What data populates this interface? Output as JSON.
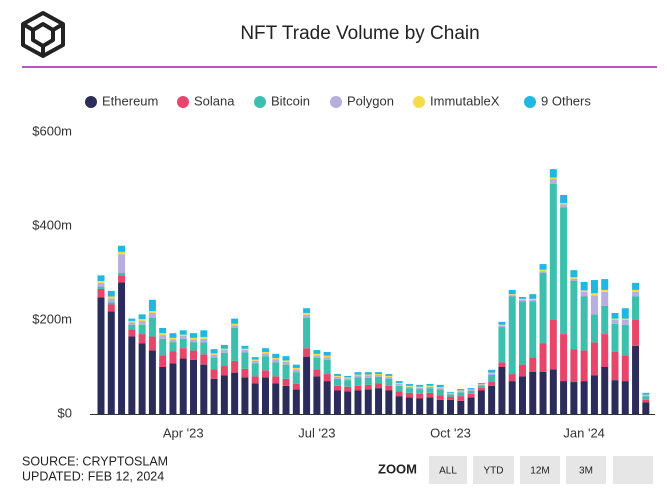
{
  "chart_data": {
    "type": "stacked_bar",
    "title": "NFT Trade Volume by Chain",
    "categories": [
      null,
      null,
      null,
      null,
      null,
      null,
      null,
      null,
      "Apr '23",
      null,
      null,
      null,
      null,
      null,
      null,
      null,
      null,
      null,
      null,
      null,
      null,
      "Jul '23",
      null,
      null,
      null,
      null,
      null,
      null,
      null,
      null,
      null,
      null,
      null,
      null,
      "Oct '23",
      null,
      null,
      null,
      null,
      null,
      null,
      null,
      null,
      null,
      null,
      null,
      null,
      "Jan '24",
      null,
      null,
      null,
      null,
      null,
      null
    ],
    "series": [
      {
        "name": "Ethereum",
        "color": "#2b2c5a",
        "values": [
          248,
          218,
          280,
          165,
          150,
          135,
          100,
          108,
          118,
          115,
          105,
          75,
          82,
          88,
          78,
          65,
          78,
          65,
          60,
          52,
          122,
          80,
          70,
          50,
          48,
          50,
          52,
          55,
          50,
          38,
          35,
          33,
          35,
          30,
          30,
          28,
          35,
          50,
          60,
          100,
          70,
          80,
          90,
          90,
          95,
          70,
          68,
          70,
          82,
          100,
          72,
          70,
          145,
          25
        ]
      },
      {
        "name": "Solana",
        "color": "#e8456b",
        "values": [
          18,
          15,
          15,
          15,
          20,
          30,
          25,
          25,
          22,
          20,
          22,
          20,
          20,
          25,
          18,
          15,
          15,
          15,
          15,
          12,
          18,
          15,
          15,
          10,
          10,
          10,
          10,
          10,
          10,
          10,
          10,
          10,
          10,
          10,
          7,
          10,
          8,
          6,
          8,
          10,
          15,
          25,
          30,
          60,
          105,
          100,
          70,
          65,
          70,
          70,
          60,
          55,
          55,
          5
        ]
      },
      {
        "name": "Bitcoin",
        "color": "#3dbfae",
        "values": [
          5,
          5,
          5,
          10,
          20,
          40,
          35,
          20,
          20,
          18,
          25,
          25,
          28,
          70,
          35,
          28,
          30,
          30,
          30,
          25,
          65,
          25,
          30,
          15,
          14,
          18,
          15,
          14,
          15,
          12,
          10,
          10,
          10,
          12,
          5,
          8,
          6,
          5,
          15,
          75,
          165,
          135,
          120,
          150,
          290,
          270,
          145,
          115,
          60,
          60,
          60,
          65,
          50,
          8
        ]
      },
      {
        "name": "Polygon",
        "color": "#b7aedc",
        "values": [
          8,
          8,
          40,
          5,
          8,
          10,
          8,
          6,
          6,
          6,
          8,
          6,
          6,
          6,
          5,
          5,
          6,
          6,
          6,
          6,
          6,
          5,
          6,
          4,
          4,
          4,
          5,
          4,
          4,
          4,
          3,
          3,
          3,
          3,
          2,
          2,
          2,
          2,
          3,
          3,
          3,
          3,
          3,
          4,
          10,
          6,
          5,
          10,
          40,
          30,
          8,
          10,
          10,
          2
        ]
      },
      {
        "name": "ImmutableX",
        "color": "#f6db4a",
        "values": [
          4,
          4,
          5,
          3,
          4,
          4,
          4,
          3,
          3,
          3,
          4,
          3,
          3,
          3,
          3,
          3,
          3,
          3,
          3,
          3,
          4,
          3,
          3,
          2,
          2,
          2,
          2,
          2,
          2,
          2,
          2,
          2,
          2,
          2,
          1,
          2,
          1,
          1,
          2,
          2,
          2,
          2,
          2,
          3,
          3,
          3,
          3,
          3,
          5,
          4,
          3,
          3,
          4,
          1
        ]
      },
      {
        "name": "9 Others",
        "color": "#1eb8e2",
        "values": [
          12,
          12,
          13,
          5,
          10,
          24,
          11,
          10,
          9,
          10,
          14,
          9,
          8,
          11,
          6,
          5,
          8,
          9,
          9,
          7,
          10,
          8,
          8,
          4,
          3,
          5,
          5,
          4,
          4,
          4,
          4,
          4,
          4,
          5,
          2,
          3,
          3,
          2,
          6,
          6,
          9,
          4,
          10,
          12,
          18,
          17,
          15,
          18,
          28,
          23,
          12,
          22,
          15,
          4
        ]
      }
    ],
    "ylim": [
      0,
      600
    ],
    "yticks": [
      {
        "value": 0,
        "label": "$0"
      },
      {
        "value": 200,
        "label": "$200m"
      },
      {
        "value": 400,
        "label": "$400m"
      },
      {
        "value": 600,
        "label": "$600m"
      }
    ],
    "grid": false
  },
  "footer": {
    "source": "SOURCE: CRYPTOSLAM",
    "updated": "UPDATED: FEB 12, 2024"
  },
  "zoom": {
    "label": "ZOOM",
    "buttons": [
      "ALL",
      "YTD",
      "12M",
      "3M"
    ]
  }
}
